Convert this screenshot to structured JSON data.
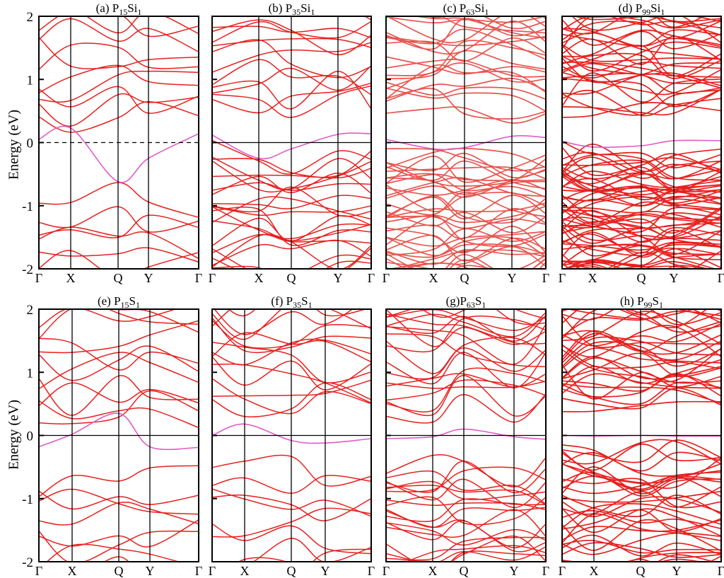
{
  "figure": {
    "ylabel": "Energy (eV)",
    "colors": {
      "band": "#e8201e",
      "band_light": "#e9554f",
      "gap_state": "#e05cc6",
      "axis": "#000000",
      "fermi": "#000000"
    }
  },
  "chart_data": [
    {
      "type": "line",
      "panel": "a",
      "title": "(a) P15Si1",
      "title_parts": [
        "(a) P",
        "15",
        "Si",
        "1"
      ],
      "xticks": [
        "Γ",
        "X",
        "Q",
        "Y",
        "Γ"
      ],
      "ylim": [
        -2,
        2
      ],
      "yticks": [
        -2,
        -1,
        0,
        1,
        2
      ],
      "ylabel": "Energy (eV)",
      "fermi_style": "dashed",
      "dopant_band_at_gamma": 0.05,
      "n_conduction": 11,
      "n_valence": 7,
      "density": "sparse"
    },
    {
      "type": "line",
      "panel": "b",
      "title": "(b) P35Si1",
      "title_parts": [
        "(b) P",
        "35",
        "Si",
        "1"
      ],
      "xticks": [
        "Γ",
        "X",
        "Q",
        "Y",
        "Γ"
      ],
      "ylim": [
        -2,
        2
      ],
      "fermi_style": "solid",
      "dopant_band_at_gamma": 0.12,
      "n_conduction": 13,
      "n_valence": 22,
      "density": "medium"
    },
    {
      "type": "line",
      "panel": "c",
      "title": "(c) P63Si1",
      "title_parts": [
        "(c) P",
        "63",
        "Si",
        "1"
      ],
      "xticks": [
        "Γ",
        "X",
        "Q",
        "Y",
        "Γ"
      ],
      "ylim": [
        -2,
        2
      ],
      "fermi_style": "solid",
      "dopant_band_at_gamma": 0.05,
      "n_conduction": 22,
      "n_valence": 38,
      "density": "dense"
    },
    {
      "type": "line",
      "panel": "d",
      "title": "(d) P99Si1",
      "title_parts": [
        "(d) P",
        "99",
        "Si",
        "1"
      ],
      "xticks": [
        "Γ",
        "X",
        "Q",
        "Y",
        "Γ"
      ],
      "ylim": [
        -2,
        2
      ],
      "fermi_style": "none",
      "dopant_band_at_gamma": 0.02,
      "n_conduction": 34,
      "n_valence": 60,
      "density": "very dense"
    },
    {
      "type": "line",
      "panel": "e",
      "title": "(e) P15S1",
      "title_parts": [
        "(e) P",
        "15",
        "S",
        "1"
      ],
      "xticks": [
        "Γ",
        "X",
        "Q",
        "Y",
        "Γ"
      ],
      "ylim": [
        -2,
        2
      ],
      "yticks": [
        -2,
        -1,
        0,
        1,
        2
      ],
      "ylabel": "Energy (eV)",
      "fermi_style": "solid",
      "dopant_band_at_gamma": -0.18,
      "n_conduction": 12,
      "n_valence": 8,
      "density": "sparse"
    },
    {
      "type": "line",
      "panel": "f",
      "title": "(f) P35S1",
      "title_parts": [
        "(f) P",
        "35",
        "S",
        "1"
      ],
      "xticks": [
        "Γ",
        "X",
        "Q",
        "Y",
        "Γ"
      ],
      "ylim": [
        -2,
        2
      ],
      "fermi_style": "solid",
      "dopant_band_at_gamma": 0.0,
      "n_conduction": 14,
      "n_valence": 9,
      "density": "medium"
    },
    {
      "type": "line",
      "panel": "g",
      "title": "(g)P63S1",
      "title_parts": [
        "(g)P",
        "63",
        "S",
        "1"
      ],
      "xticks": [
        "Γ",
        "X",
        "Q",
        "Y",
        "Γ"
      ],
      "ylim": [
        -2,
        2
      ],
      "fermi_style": "solid",
      "dopant_band_at_gamma": -0.05,
      "n_conduction": 20,
      "n_valence": 22,
      "density": "dense"
    },
    {
      "type": "line",
      "panel": "h",
      "title": "(h) P99S1",
      "title_parts": [
        "(h) P",
        "99",
        "S",
        "1"
      ],
      "xticks": [
        "Γ",
        "X",
        "Q",
        "Y",
        "Γ"
      ],
      "ylim": [
        -2,
        2
      ],
      "fermi_style": "solid",
      "dopant_band_at_gamma": 0.0,
      "n_conduction": 34,
      "n_valence": 34,
      "density": "very dense"
    }
  ]
}
